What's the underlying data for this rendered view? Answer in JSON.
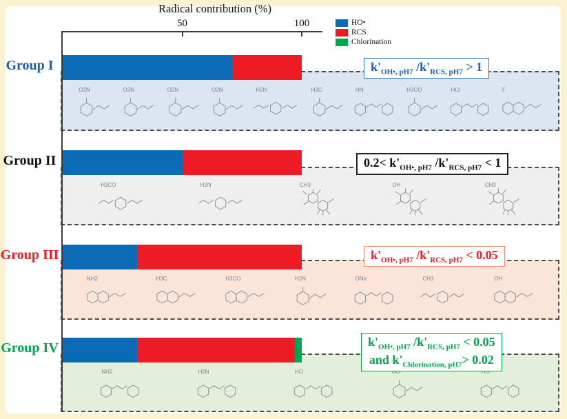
{
  "figure": {
    "outer_background": "#fbf2cf",
    "panel_background": "#ffffff",
    "axis_color": "#3d3d3d",
    "dash_border_color": "#4b4b4b"
  },
  "chart_data": {
    "type": "bar",
    "orientation": "horizontal",
    "stacked": true,
    "title": "Radical contribution (%)",
    "categories": [
      "Group I",
      "Group II",
      "Group III",
      "Group IV"
    ],
    "series": [
      {
        "name": "HO•",
        "color": "#0b6bb7",
        "values": [
          71,
          50,
          31,
          31
        ]
      },
      {
        "name": "RCS",
        "color": "#ed1c24",
        "values": [
          29,
          50,
          69,
          66
        ]
      },
      {
        "name": "Chlorination",
        "color": "#00a651",
        "values": [
          0,
          0,
          0,
          3
        ]
      }
    ],
    "x_ticks": [
      50,
      100
    ],
    "xlim": [
      0,
      100
    ],
    "legend_position": "top-right",
    "grid": false
  },
  "groups": [
    {
      "label": "Group I",
      "label_color": "#1b5eac",
      "tint": "#dce6f2",
      "annotation": {
        "text_color": "#1b5eac",
        "border_color": "#2e75b6",
        "border_width": 1.5,
        "lines": [
          [
            {
              "t": "k'"
            },
            {
              "s": "OH•, pH7"
            },
            {
              "t": " /k'"
            },
            {
              "s": "RCS, pH7"
            },
            {
              "t": " > 1"
            }
          ]
        ]
      },
      "molecules": [
        {
          "t": "ring",
          "l": "O2N"
        },
        {
          "t": "ring",
          "l": "O2N"
        },
        {
          "t": "ring",
          "l": "O2N"
        },
        {
          "t": "ring",
          "l": "O2N"
        },
        {
          "t": "chain",
          "l": "H2N"
        },
        {
          "t": "ring",
          "l": "H3C"
        },
        {
          "t": "tri",
          "l": "HN"
        },
        {
          "t": "ring",
          "l": "H3CO"
        },
        {
          "t": "tri",
          "l": "HCl"
        },
        {
          "t": "rings2",
          "l": "F"
        }
      ]
    },
    {
      "label": "Group II",
      "label_color": "#111111",
      "tint": "#efeff0",
      "annotation": {
        "text_color": "#111111",
        "border_color": "#222222",
        "border_width": 2,
        "lines": [
          [
            {
              "t": "0.2< k'"
            },
            {
              "s": "OH•, pH7"
            },
            {
              "t": " /k'"
            },
            {
              "s": "RCS, pH7"
            },
            {
              "t": " < 1"
            }
          ]
        ]
      },
      "molecules": [
        {
          "t": "chain",
          "l": "H3CO"
        },
        {
          "t": "chain",
          "l": "H2N"
        },
        {
          "t": "cluster",
          "l": "CH3"
        },
        {
          "t": "cluster",
          "l": "OH"
        },
        {
          "t": "cluster",
          "l": "CH3"
        }
      ]
    },
    {
      "label": "Group III",
      "label_color": "#ed1c24",
      "tint": "#fbe5d8",
      "annotation": {
        "text_color": "#ed1c24",
        "border_color": "#e98b6d",
        "border_width": 1.5,
        "lines": [
          [
            {
              "t": "k'"
            },
            {
              "s": "OH•, pH7"
            },
            {
              "t": " /k'"
            },
            {
              "s": "RCS, pH7"
            },
            {
              "t": " < 0.05"
            }
          ]
        ]
      },
      "molecules": [
        {
          "t": "rings2",
          "l": "NH2"
        },
        {
          "t": "rings2",
          "l": "H3C"
        },
        {
          "t": "rings2",
          "l": "H3CO"
        },
        {
          "t": "ring",
          "l": "H2N"
        },
        {
          "t": "tri",
          "l": "ONa"
        },
        {
          "t": "chain",
          "l": "CH3"
        },
        {
          "t": "rings2",
          "l": "OH"
        }
      ]
    },
    {
      "label": "Group IV",
      "label_color": "#00a651",
      "tint": "#e4efdb",
      "annotation": {
        "text_color": "#00a651",
        "border_color": "#00a651",
        "border_width": 1.5,
        "lines": [
          [
            {
              "t": "k'"
            },
            {
              "s": "OH•, pH7"
            },
            {
              "t": " /k'"
            },
            {
              "s": "RCS, pH7"
            },
            {
              "t": " < 0.05"
            }
          ],
          [
            {
              "t": "and k'"
            },
            {
              "s": "Chlorination, pH7"
            },
            {
              "t": "> 0.02"
            }
          ]
        ]
      },
      "molecules": [
        {
          "t": "tri",
          "l": "NH2"
        },
        {
          "t": "tri",
          "l": "H2N"
        },
        {
          "t": "tri",
          "l": "HO"
        },
        {
          "t": "ring",
          "l": "HO"
        },
        {
          "t": "tri",
          "l": "HO"
        }
      ]
    }
  ]
}
